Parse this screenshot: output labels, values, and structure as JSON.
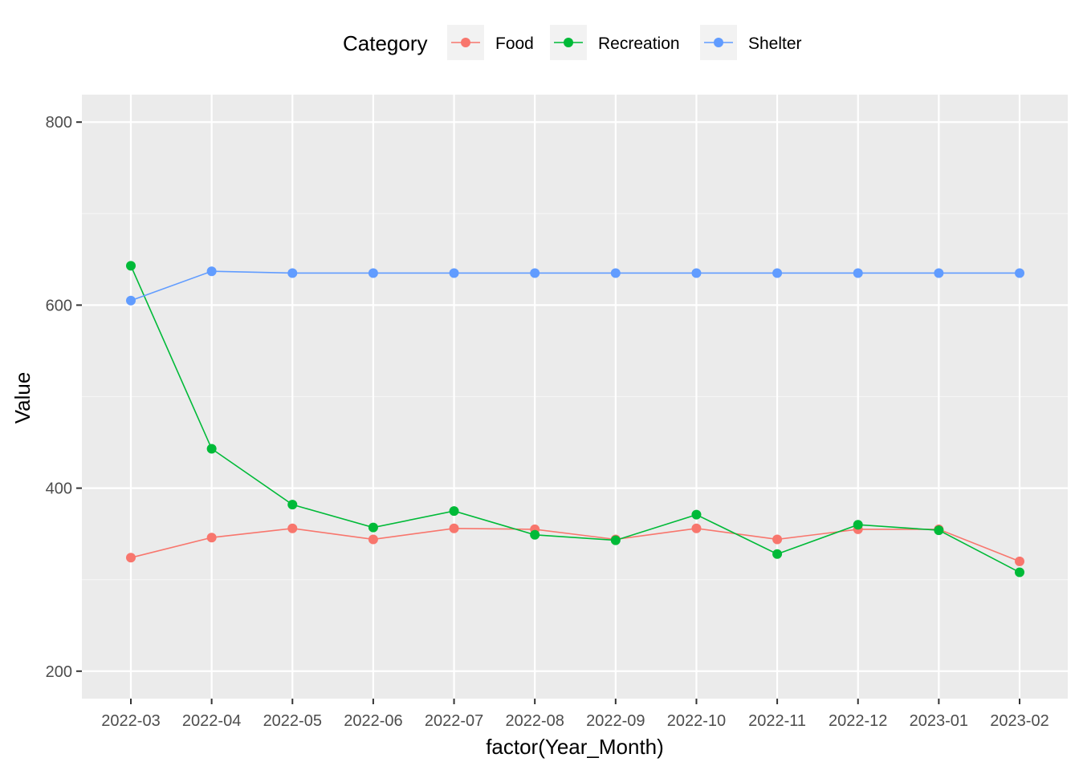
{
  "chart_data": {
    "type": "line",
    "xlabel": "factor(Year_Month)",
    "ylabel": "Value",
    "ylim": [
      170,
      830
    ],
    "y_ticks": [
      200,
      400,
      600,
      800
    ],
    "grid": true,
    "legend_position": "top",
    "legend_title": "Category",
    "categories": [
      "2022-03",
      "2022-04",
      "2022-05",
      "2022-06",
      "2022-07",
      "2022-08",
      "2022-09",
      "2022-10",
      "2022-11",
      "2022-12",
      "2023-01",
      "2023-02"
    ],
    "series": [
      {
        "name": "Food",
        "color": "#F8766D",
        "values": [
          324,
          346,
          356,
          344,
          356,
          355,
          344,
          356,
          344,
          355,
          355,
          320
        ]
      },
      {
        "name": "Recreation",
        "color": "#00BA38",
        "values": [
          643,
          443,
          382,
          357,
          375,
          349,
          343,
          371,
          328,
          360,
          354,
          308
        ]
      },
      {
        "name": "Shelter",
        "color": "#619CFF",
        "values": [
          605,
          637,
          635,
          635,
          635,
          635,
          635,
          635,
          635,
          635,
          635,
          635
        ]
      }
    ]
  },
  "colors": {
    "panel_background": "#EBEBEB",
    "grid_major": "#FFFFFF",
    "grid_minor": "#F5F5F5",
    "legend_key_background": "#F2F2F2"
  }
}
